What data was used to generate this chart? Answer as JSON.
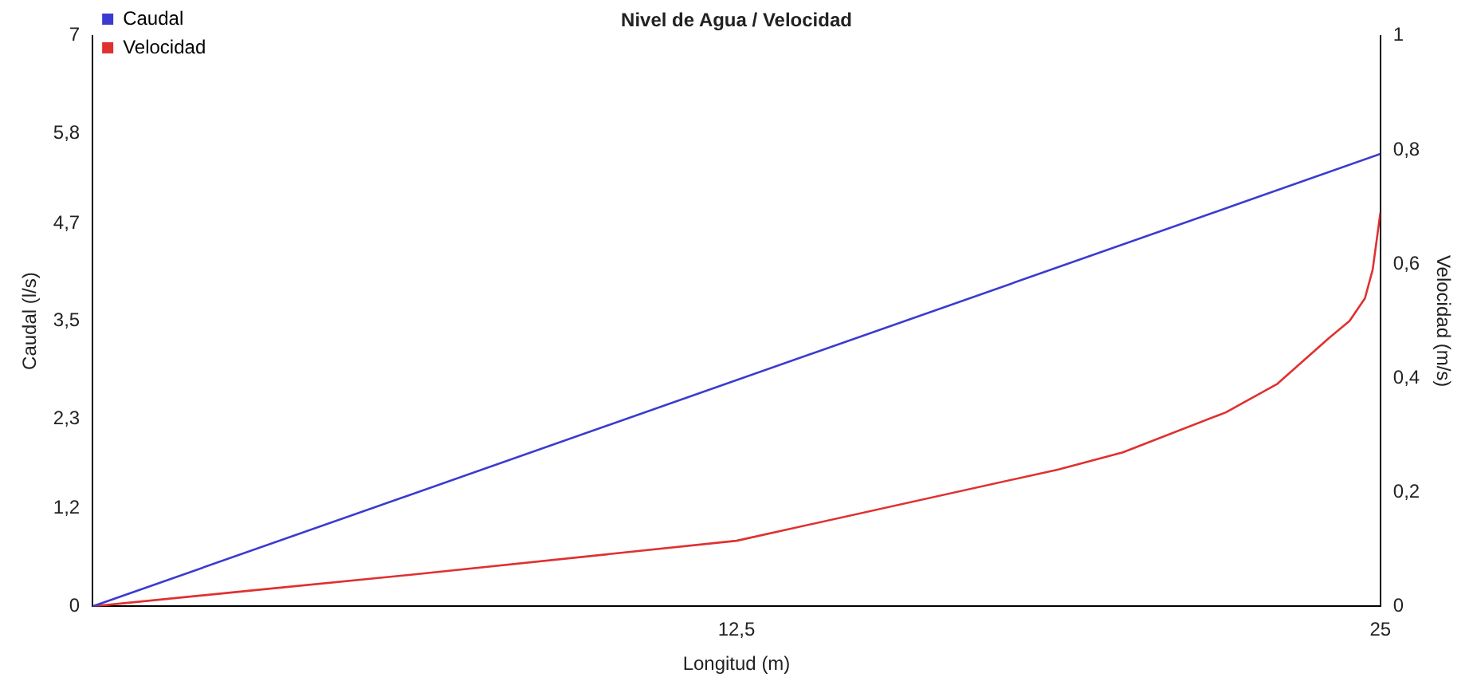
{
  "chart_data": {
    "type": "line",
    "title": "Nivel de Agua / Velocidad",
    "xlabel": "Longitud (m)",
    "ylabel": "Caudal (l/s)",
    "y2label": "Velocidad (m/s)",
    "xlim": [
      0,
      25
    ],
    "xticks": [
      {
        "value": 12.5,
        "label": "12,5"
      },
      25
    ],
    "ylim": [
      0,
      7
    ],
    "yticks": [
      0,
      {
        "value": 1.2,
        "label": "1,2"
      },
      {
        "value": 2.3,
        "label": "2,3"
      },
      {
        "value": 3.5,
        "label": "3,5"
      },
      {
        "value": 4.7,
        "label": "4,7"
      },
      {
        "value": 5.8,
        "label": "5,8"
      },
      7
    ],
    "y2lim": [
      0,
      1
    ],
    "y2ticks": [
      0,
      {
        "value": 0.2,
        "label": "0,2"
      },
      {
        "value": 0.4,
        "label": "0,4"
      },
      {
        "value": 0.6,
        "label": "0,6"
      },
      {
        "value": 0.8,
        "label": "0,8"
      },
      1
    ],
    "grid": false,
    "legend": "top left",
    "marker": "none",
    "line_style": "solid",
    "series": [
      {
        "name": "Caudal",
        "color": "#3b3bd0",
        "x": [
          0,
          25
        ],
        "values": [
          0,
          5.55
        ]
      },
      {
        "name": "Velocidad",
        "color": "#e03030",
        "axis": "y2",
        "x": [
          0,
          3.1,
          6.25,
          12.5,
          18.75,
          20,
          22,
          23,
          24,
          24.4,
          24.7,
          24.85,
          25
        ],
        "values": [
          0,
          0.028,
          0.056,
          0.115,
          0.24,
          0.27,
          0.34,
          0.39,
          0.47,
          0.5,
          0.54,
          0.59,
          0.69
        ]
      }
    ]
  }
}
